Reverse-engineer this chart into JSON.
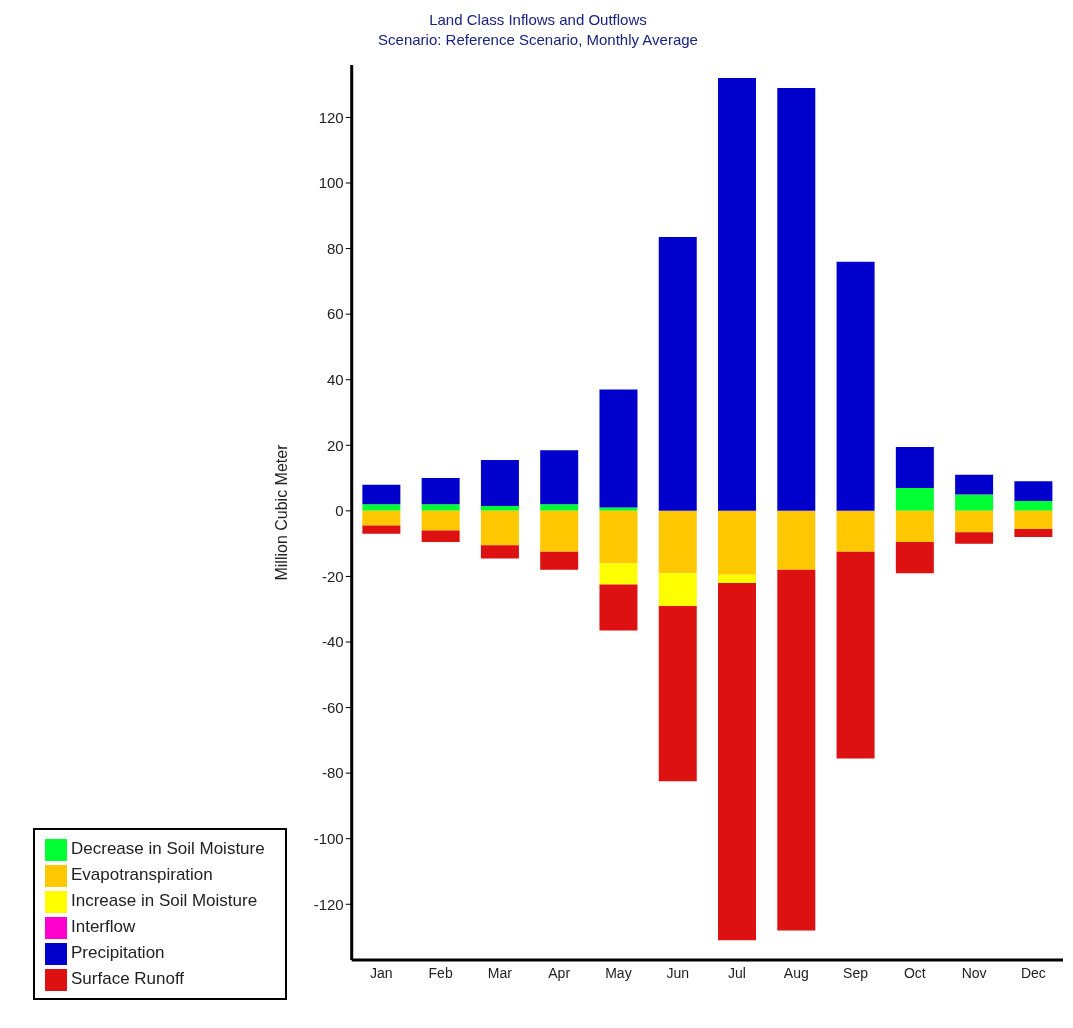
{
  "chart_data": {
    "type": "bar",
    "title": "Land Class Inflows and Outflows",
    "subtitle": "Scenario: Reference Scenario,  Monthly Average",
    "ylabel": "Million Cubic Meter",
    "categories": [
      "Jan",
      "Feb",
      "Mar",
      "Apr",
      "May",
      "Jun",
      "Jul",
      "Aug",
      "Sep",
      "Oct",
      "Nov",
      "Dec"
    ],
    "stacked": true,
    "series": [
      {
        "name": "Decrease in Soil Moisture",
        "color": "#00ff33",
        "values": [
          2,
          2,
          1.5,
          2,
          1,
          0,
          0,
          0,
          0,
          7,
          5,
          3
        ]
      },
      {
        "name": "Evapotranspiration",
        "color": "#ffc800",
        "values": [
          -4.5,
          -6,
          -10.5,
          -12.5,
          -16,
          -19,
          -19.5,
          -18,
          -12.5,
          -9.5,
          -6.5,
          -5.5
        ]
      },
      {
        "name": "Increase in Soil Moisture",
        "color": "#ffff00",
        "values": [
          0,
          0,
          0,
          0,
          -6.5,
          -10,
          -2.5,
          0,
          0,
          0,
          0,
          0
        ]
      },
      {
        "name": "Interflow",
        "color": "#ff00cc",
        "values": [
          0,
          0,
          0,
          0,
          0,
          0,
          0,
          0,
          0,
          0,
          0,
          0
        ]
      },
      {
        "name": "Precipitation",
        "color": "#0000cc",
        "values": [
          6,
          8,
          14,
          16.5,
          36,
          83.5,
          132,
          129,
          76,
          12.5,
          6,
          6
        ]
      },
      {
        "name": "Surface Runoff",
        "color": "#dd1111",
        "values": [
          -2.5,
          -3.5,
          -4,
          -5.5,
          -14,
          -53.5,
          -109,
          -110,
          -63,
          -9.5,
          -3.5,
          -2.5
        ]
      }
    ],
    "ylim": [
      -137,
      136
    ],
    "yticks": [
      -120,
      -100,
      -80,
      -60,
      -40,
      -20,
      0,
      20,
      40,
      60,
      80,
      100,
      120
    ],
    "grid": false,
    "legend": "bottom left"
  }
}
